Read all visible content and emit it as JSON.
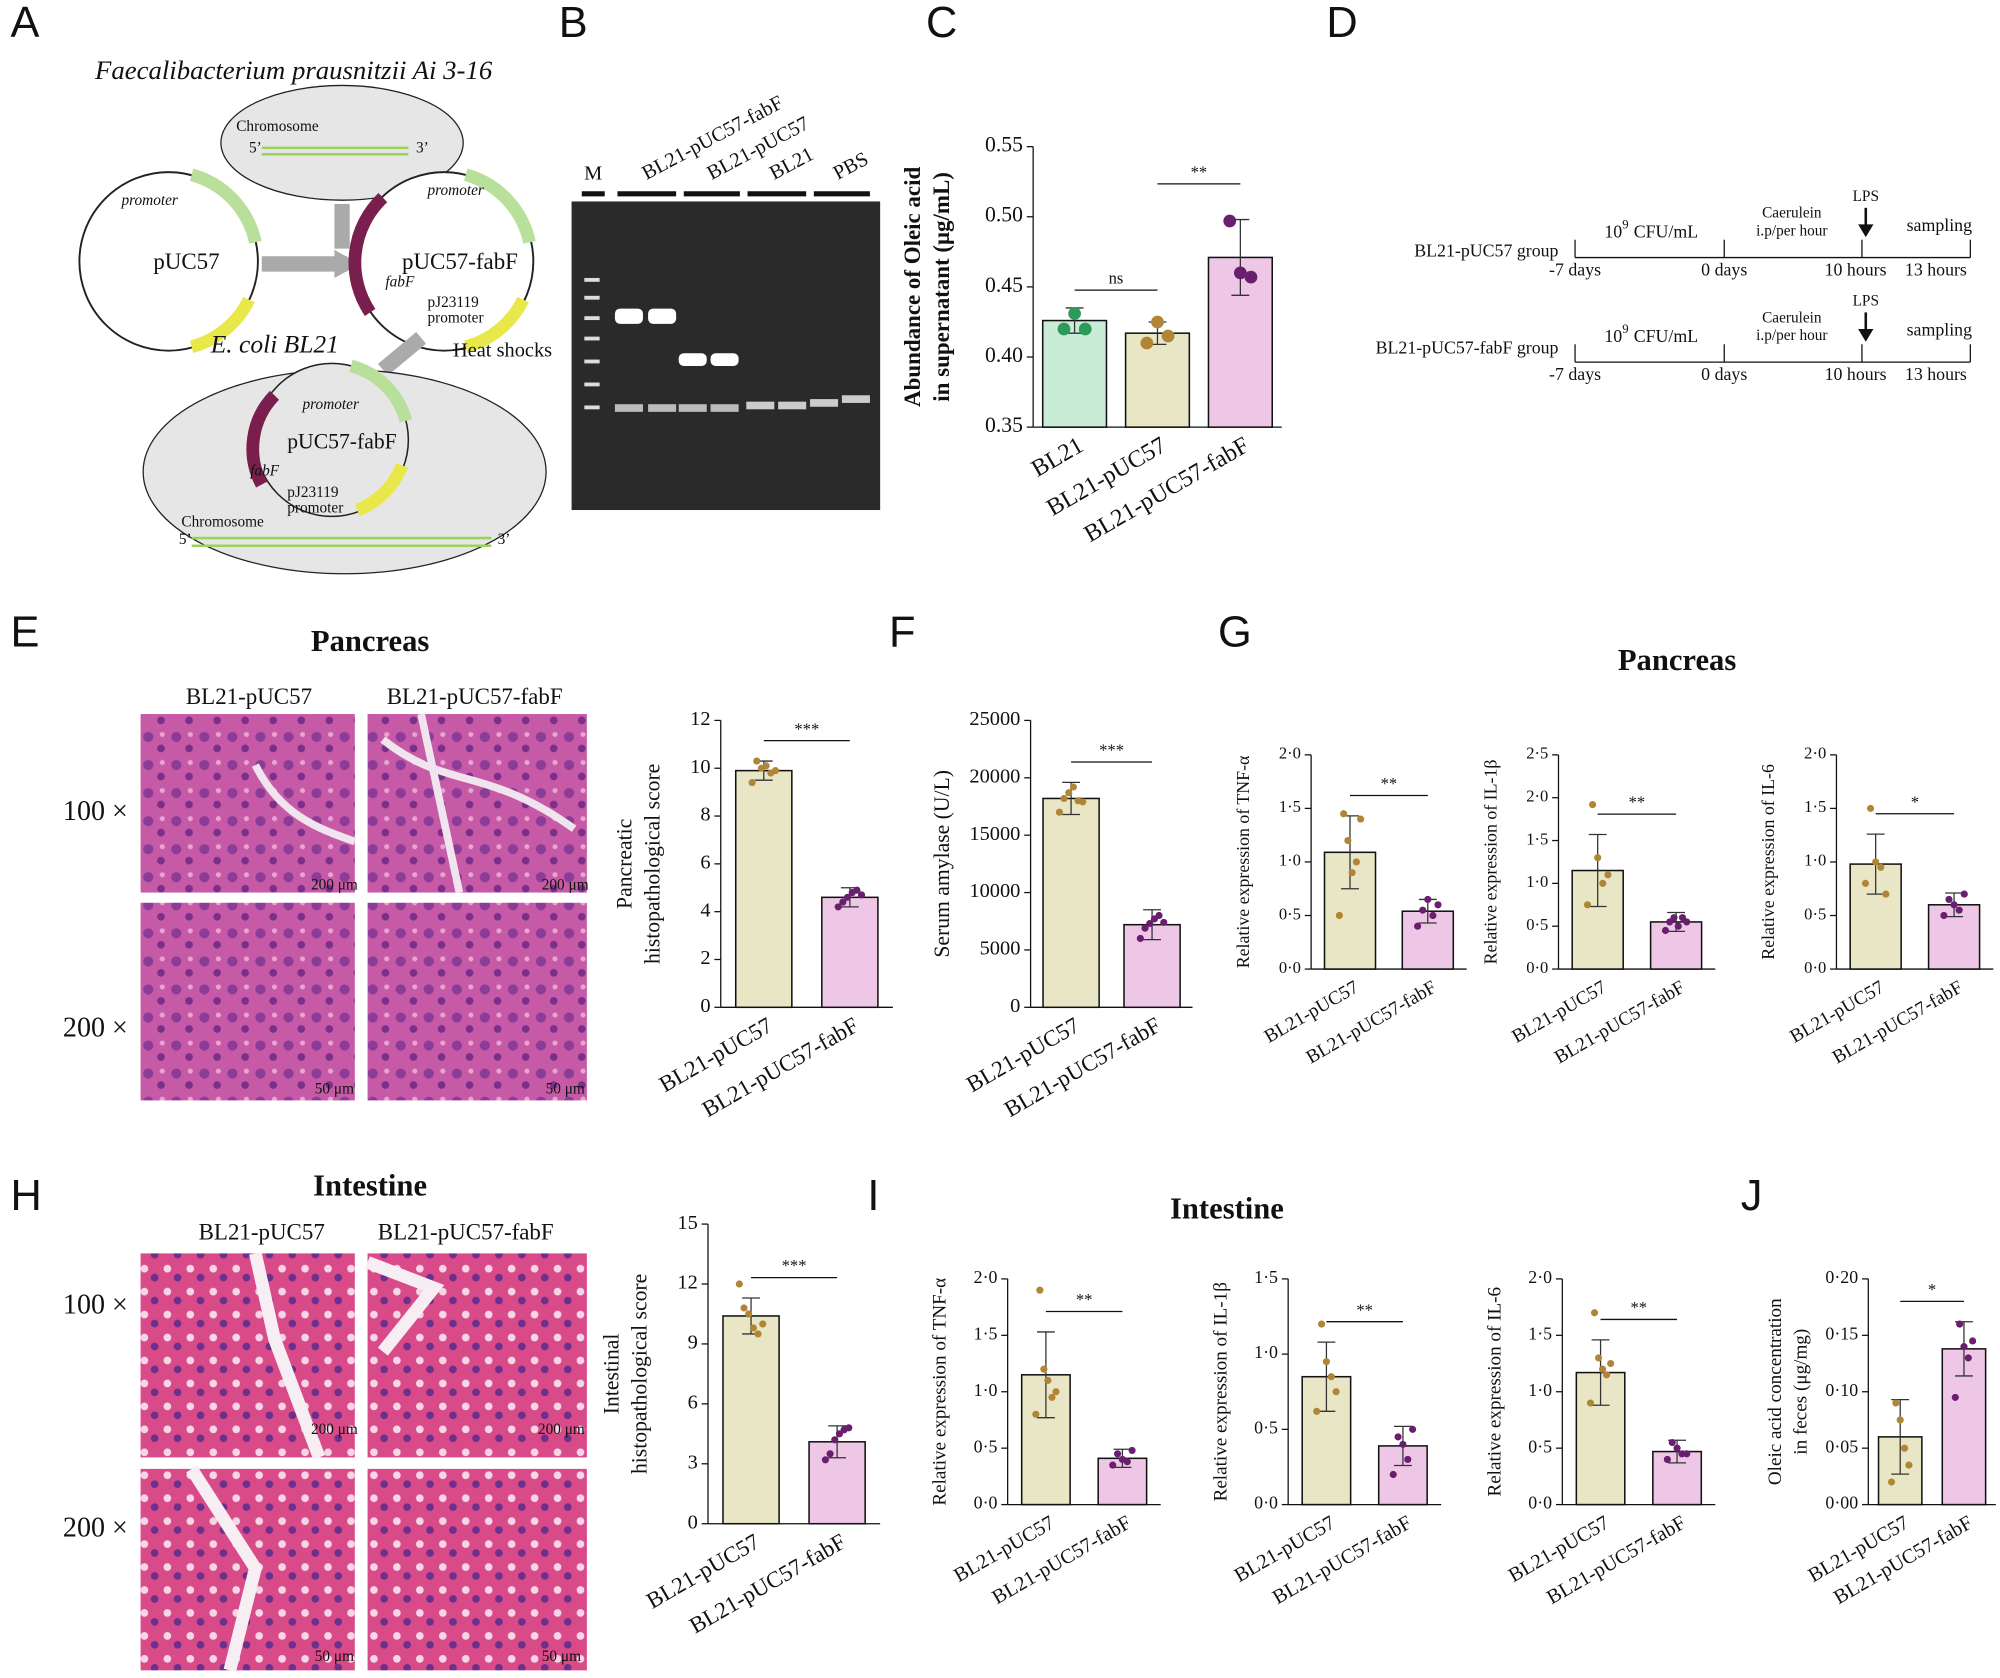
{
  "panel_labels": [
    "A",
    "B",
    "C",
    "D",
    "E",
    "F",
    "G",
    "H",
    "I",
    "J"
  ],
  "diagram_a": {
    "organism": "Faecalibacterium prausnitzii Ai 3-16",
    "chromosome": "Chromosome",
    "five": "5’",
    "three": "3’",
    "promoter": "promoter",
    "puc57": "pUC57",
    "puc57_fabf": "pUC57-fabF",
    "fabf": "fabF",
    "pj": "pJ23119",
    "ecoli": "E. coli BL21",
    "heat": "Heat shocks"
  },
  "gel_b": {
    "lanes": [
      "M",
      "BL21-pUC57-fabF",
      "BL21-pUC57",
      "BL21",
      "PBS"
    ]
  },
  "timeline_d": {
    "groups": [
      "BL21-pUC57 group",
      "BL21-pUC57-fabF group"
    ],
    "dose_base": "10",
    "dose_exp": "9",
    "dose_unit": "CFU/mL",
    "caerulein": "Caerulein",
    "ip": "i.p/per hour",
    "lps": "LPS",
    "sampling": "sampling",
    "times": [
      "-7 days",
      "0 days",
      "10 hours",
      "13 hours"
    ]
  },
  "histology": {
    "pancreas": "Pancreas",
    "intestine": "Intestine",
    "columns": [
      "BL21-pUC57",
      "BL21-pUC57-fabF"
    ],
    "rows": [
      "100 ×",
      "200 ×"
    ],
    "scales": [
      "200 μm",
      "50 μm"
    ]
  },
  "titles": {
    "g": "Pancreas",
    "i": "Intestine"
  },
  "chart_data": [
    {
      "type": "bar",
      "ylabel": [
        "Abundance of  Oleic acid",
        "in supernatant (μg/mL)"
      ],
      "categories": [
        "BL21",
        "BL21-pUC57",
        "BL21-pUC57-fabF"
      ],
      "values": [
        0.426,
        0.417,
        0.471
      ],
      "errors": [
        0.009,
        0.008,
        0.027
      ],
      "points": [
        [
          0.42,
          0.431,
          0.42
        ],
        [
          0.41,
          0.425,
          0.415
        ],
        [
          0.497,
          0.46,
          0.457
        ]
      ],
      "colors": [
        "#c9ecd7",
        "#e8e6c4",
        "#eec6e6"
      ],
      "point_colors": [
        "#2e9a5a",
        "#b08636",
        "#6a1e6e"
      ],
      "ylim": [
        0.35,
        0.55
      ],
      "yticks": [
        0.35,
        {
          "value": 0.4,
          "label": "0.40"
        },
        0.45,
        {
          "value": 0.5,
          "label": "0.50"
        },
        0.55
      ],
      "annotations": [
        "ns",
        "**"
      ]
    },
    {
      "type": "bar",
      "ylabel": [
        "Pancreatic",
        "histopathological score"
      ],
      "categories": [
        "BL21-pUC57",
        "BL21-pUC57-fabF"
      ],
      "values": [
        9.9,
        4.6
      ],
      "errors": [
        0.4,
        0.4
      ],
      "points": [
        [
          9.4,
          10.3,
          10,
          10.1,
          9.8,
          9.9
        ],
        [
          4.2,
          4.4,
          4.6,
          4.8,
          4.9,
          4.7
        ]
      ],
      "colors": [
        "#e8e6c4",
        "#eec6e6"
      ],
      "point_colors": [
        "#b08636",
        "#6a1e6e"
      ],
      "ylim": [
        0,
        12
      ],
      "yticks": [
        0,
        2,
        4,
        6,
        8,
        10,
        12
      ],
      "annotations": [
        "***"
      ]
    },
    {
      "type": "bar",
      "ylabel": [
        "Serum amylase (U/L)"
      ],
      "categories": [
        "BL21-pUC57",
        "BL21-pUC57-fabF"
      ],
      "values": [
        18200,
        7200
      ],
      "errors": [
        1400,
        1300
      ],
      "points": [
        [
          17000,
          18200,
          18700,
          19200,
          18000,
          17900
        ],
        [
          6000,
          6900,
          7300,
          7700,
          8000,
          7400
        ]
      ],
      "colors": [
        "#e8e6c4",
        "#eec6e6"
      ],
      "point_colors": [
        "#b08636",
        "#6a1e6e"
      ],
      "ylim": [
        0,
        25000
      ],
      "yticks": [
        0,
        5000,
        10000,
        15000,
        20000,
        25000
      ],
      "annotations": [
        "***"
      ]
    },
    {
      "type": "bar",
      "ylabel": [
        "Relative expression of  TNF-α"
      ],
      "categories": [
        "BL21-pUC57",
        "BL21-pUC57-fabF"
      ],
      "values": [
        1.09,
        0.54
      ],
      "errors": [
        0.34,
        0.11
      ],
      "points": [
        [
          0.5,
          1.45,
          1.2,
          0.9,
          1.0,
          1.4
        ],
        [
          0.4,
          0.55,
          0.65,
          0.5,
          0.6
        ]
      ],
      "colors": [
        "#e8e6c4",
        "#eec6e6"
      ],
      "point_colors": [
        "#b08636",
        "#6a1e6e"
      ],
      "ylim": [
        0,
        2
      ],
      "yticks": [
        {
          "value": 0,
          "label": "0·0"
        },
        {
          "value": 0.5,
          "label": "0·5"
        },
        {
          "value": 1,
          "label": "1·0"
        },
        {
          "value": 1.5,
          "label": "1·5"
        },
        {
          "value": 2,
          "label": "2·0"
        }
      ],
      "annotations": [
        "**"
      ]
    },
    {
      "type": "bar",
      "ylabel": [
        "Relative expression of  IL-1β"
      ],
      "categories": [
        "BL21-pUC57",
        "BL21-pUC57-fabF"
      ],
      "values": [
        1.15,
        0.55
      ],
      "errors": [
        0.42,
        0.11
      ],
      "points": [
        [
          0.75,
          1.92,
          1.3,
          1.0,
          1.1
        ],
        [
          0.45,
          0.55,
          0.6,
          0.5,
          0.6,
          0.55
        ]
      ],
      "colors": [
        "#e8e6c4",
        "#eec6e6"
      ],
      "point_colors": [
        "#b08636",
        "#6a1e6e"
      ],
      "ylim": [
        0,
        2.5
      ],
      "yticks": [
        {
          "value": 0,
          "label": "0·0"
        },
        {
          "value": 0.5,
          "label": "0·5"
        },
        {
          "value": 1,
          "label": "1·0"
        },
        {
          "value": 1.5,
          "label": "1·5"
        },
        {
          "value": 2,
          "label": "2·0"
        },
        {
          "value": 2.5,
          "label": "2·5"
        }
      ],
      "annotations": [
        "**"
      ]
    },
    {
      "type": "bar",
      "ylabel": [
        "Relative expression of  IL-6"
      ],
      "categories": [
        "BL21-pUC57",
        "BL21-pUC57-fabF"
      ],
      "values": [
        0.98,
        0.6
      ],
      "errors": [
        0.28,
        0.11
      ],
      "points": [
        [
          0.8,
          1.5,
          1.0,
          0.95,
          0.7
        ],
        [
          0.5,
          0.65,
          0.6,
          0.55,
          0.7
        ]
      ],
      "colors": [
        "#e8e6c4",
        "#eec6e6"
      ],
      "point_colors": [
        "#b08636",
        "#6a1e6e"
      ],
      "ylim": [
        0,
        2
      ],
      "yticks": [
        {
          "value": 0,
          "label": "0·0"
        },
        {
          "value": 0.5,
          "label": "0·5"
        },
        {
          "value": 1,
          "label": "1·0"
        },
        {
          "value": 1.5,
          "label": "1·5"
        },
        {
          "value": 2,
          "label": "2·0"
        }
      ],
      "annotations": [
        "*"
      ]
    },
    {
      "type": "bar",
      "ylabel": [
        "Intestinal",
        "histopathological score"
      ],
      "categories": [
        "BL21-pUC57",
        "BL21-pUC57-fabF"
      ],
      "values": [
        10.4,
        4.1
      ],
      "errors": [
        0.9,
        0.8
      ],
      "points": [
        [
          12,
          10.8,
          10.5,
          9.8,
          9.5,
          10
        ],
        [
          3.2,
          3.5,
          4.2,
          4.5,
          4.7,
          4.8
        ]
      ],
      "colors": [
        "#e8e6c4",
        "#eec6e6"
      ],
      "point_colors": [
        "#b08636",
        "#6a1e6e"
      ],
      "ylim": [
        0,
        15
      ],
      "yticks": [
        0,
        3,
        6,
        9,
        12,
        15
      ],
      "annotations": [
        "***"
      ]
    },
    {
      "type": "bar",
      "ylabel": [
        "Relative expression of  TNF-α"
      ],
      "categories": [
        "BL21-pUC57",
        "BL21-pUC57-fabF"
      ],
      "values": [
        1.15,
        0.41
      ],
      "errors": [
        0.38,
        0.08
      ],
      "points": [
        [
          0.8,
          1.9,
          1.2,
          1.1,
          0.95,
          1.0
        ],
        [
          0.35,
          0.45,
          0.4,
          0.38,
          0.48
        ]
      ],
      "colors": [
        "#e8e6c4",
        "#eec6e6"
      ],
      "point_colors": [
        "#b08636",
        "#6a1e6e"
      ],
      "ylim": [
        0,
        2
      ],
      "yticks": [
        {
          "value": 0,
          "label": "0·0"
        },
        {
          "value": 0.5,
          "label": "0·5"
        },
        {
          "value": 1,
          "label": "1·0"
        },
        {
          "value": 1.5,
          "label": "1·5"
        },
        {
          "value": 2,
          "label": "2·0"
        }
      ],
      "annotations": [
        "**"
      ]
    },
    {
      "type": "bar",
      "ylabel": [
        "Relative expression of  IL-1β"
      ],
      "categories": [
        "BL21-pUC57",
        "BL21-pUC57-fabF"
      ],
      "values": [
        0.85,
        0.39
      ],
      "errors": [
        0.23,
        0.13
      ],
      "points": [
        [
          0.62,
          1.2,
          0.95,
          0.85,
          0.75
        ],
        [
          0.2,
          0.45,
          0.4,
          0.3,
          0.5
        ]
      ],
      "colors": [
        "#e8e6c4",
        "#eec6e6"
      ],
      "point_colors": [
        "#b08636",
        "#6a1e6e"
      ],
      "ylim": [
        0,
        1.5
      ],
      "yticks": [
        {
          "value": 0,
          "label": "0·0"
        },
        {
          "value": 0.5,
          "label": "0·5"
        },
        {
          "value": 1,
          "label": "1·0"
        },
        {
          "value": 1.5,
          "label": "1·5"
        }
      ],
      "annotations": [
        "**"
      ]
    },
    {
      "type": "bar",
      "ylabel": [
        "Relative expression of  IL-6"
      ],
      "categories": [
        "BL21-pUC57",
        "BL21-pUC57-fabF"
      ],
      "values": [
        1.17,
        0.47
      ],
      "errors": [
        0.29,
        0.1
      ],
      "points": [
        [
          0.9,
          1.7,
          1.3,
          1.2,
          1.15,
          1.25
        ],
        [
          0.4,
          0.55,
          0.5,
          0.45,
          0.45
        ]
      ],
      "colors": [
        "#e8e6c4",
        "#eec6e6"
      ],
      "point_colors": [
        "#b08636",
        "#6a1e6e"
      ],
      "ylim": [
        0,
        2
      ],
      "yticks": [
        {
          "value": 0,
          "label": "0·0"
        },
        {
          "value": 0.5,
          "label": "0·5"
        },
        {
          "value": 1,
          "label": "1·0"
        },
        {
          "value": 1.5,
          "label": "1·5"
        },
        {
          "value": 2,
          "label": "2·0"
        }
      ],
      "annotations": [
        "**"
      ]
    },
    {
      "type": "bar",
      "ylabel": [
        "Oleic acid concentration",
        "in feces (μg/mg)"
      ],
      "categories": [
        "BL21-pUC57",
        "BL21-pUC57-fabF"
      ],
      "values": [
        0.06,
        0.138
      ],
      "errors": [
        0.033,
        0.024
      ],
      "points": [
        [
          0.02,
          0.09,
          0.075,
          0.05,
          0.035
        ],
        [
          0.095,
          0.16,
          0.14,
          0.13,
          0.145
        ]
      ],
      "colors": [
        "#e8e6c4",
        "#eec6e6"
      ],
      "point_colors": [
        "#b08636",
        "#6a1e6e"
      ],
      "ylim": [
        0,
        0.2
      ],
      "yticks": [
        {
          "value": 0,
          "label": "0·00"
        },
        {
          "value": 0.05,
          "label": "0·05"
        },
        {
          "value": 0.1,
          "label": "0·10"
        },
        {
          "value": 0.15,
          "label": "0·15"
        },
        {
          "value": 0.2,
          "label": "0·20"
        }
      ],
      "annotations": [
        "*"
      ]
    }
  ]
}
